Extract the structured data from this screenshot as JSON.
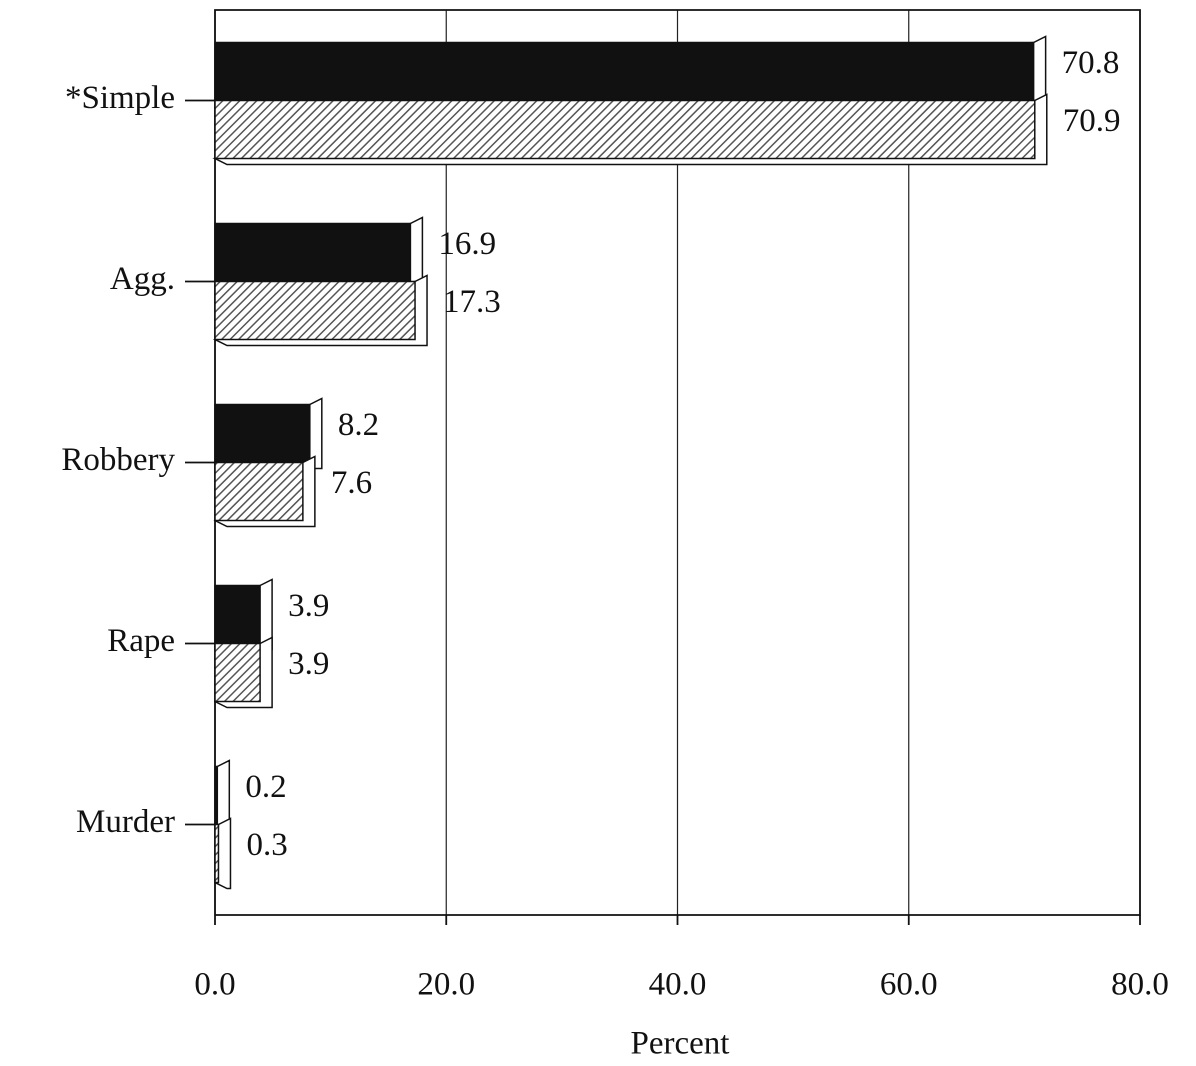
{
  "chart_data": {
    "type": "bar",
    "orientation": "horizontal",
    "categories": [
      "*Simple",
      "Agg.",
      "Robbery",
      "Rape",
      "Murder"
    ],
    "series": [
      {
        "color": "#111111",
        "values": [
          70.8,
          16.9,
          8.2,
          3.9,
          0.2
        ]
      },
      {
        "color": "#555555",
        "pattern": "hatch",
        "values": [
          70.9,
          17.3,
          7.6,
          3.9,
          0.3
        ]
      }
    ],
    "xlabel": "Percent",
    "xlim": [
      0,
      80
    ],
    "xticks": [
      {
        "value": 0,
        "label": "0.0"
      },
      {
        "value": 20,
        "label": "20.0"
      },
      {
        "value": 40,
        "label": "40.0"
      },
      {
        "value": 60,
        "label": "60.0"
      },
      {
        "value": 80,
        "label": "80.0"
      }
    ],
    "grid": true
  }
}
